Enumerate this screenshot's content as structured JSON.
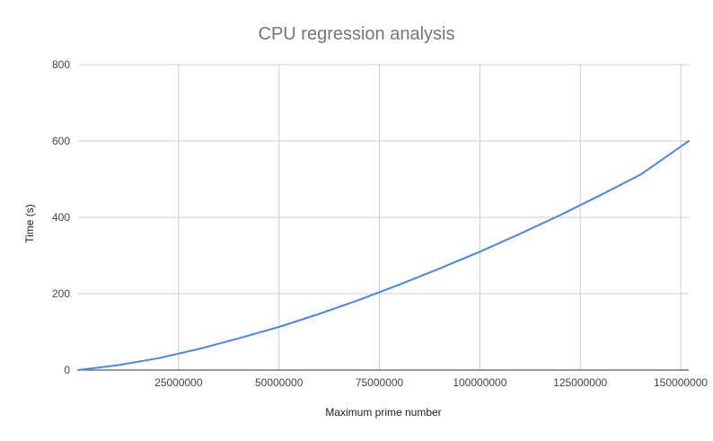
{
  "chart_data": {
    "type": "line",
    "title": "CPU regression analysis",
    "xlabel": "Maximum prime number",
    "ylabel": "Time (s)",
    "xlim": [
      0,
      152000000
    ],
    "ylim": [
      0,
      800
    ],
    "x_ticks": [
      25000000,
      50000000,
      75000000,
      100000000,
      125000000,
      150000000
    ],
    "x_tick_labels": [
      "25000000",
      "50000000",
      "75000000",
      "100000000",
      "125000000",
      "150000000"
    ],
    "y_ticks": [
      0,
      200,
      400,
      600,
      800
    ],
    "y_tick_labels": [
      "0",
      "200",
      "400",
      "600",
      "800"
    ],
    "grid": true,
    "colors": {
      "line": "#4a86e8"
    },
    "series": [
      {
        "x": [
          0,
          10000000,
          20000000,
          30000000,
          40000000,
          50000000,
          60000000,
          70000000,
          80000000,
          90000000,
          100000000,
          110000000,
          120000000,
          130000000,
          140000000,
          152000000
        ],
        "values": [
          0,
          13,
          31,
          55,
          83,
          113,
          147,
          184,
          224,
          266,
          310,
          357,
          406,
          458,
          512,
          600
        ]
      }
    ]
  }
}
